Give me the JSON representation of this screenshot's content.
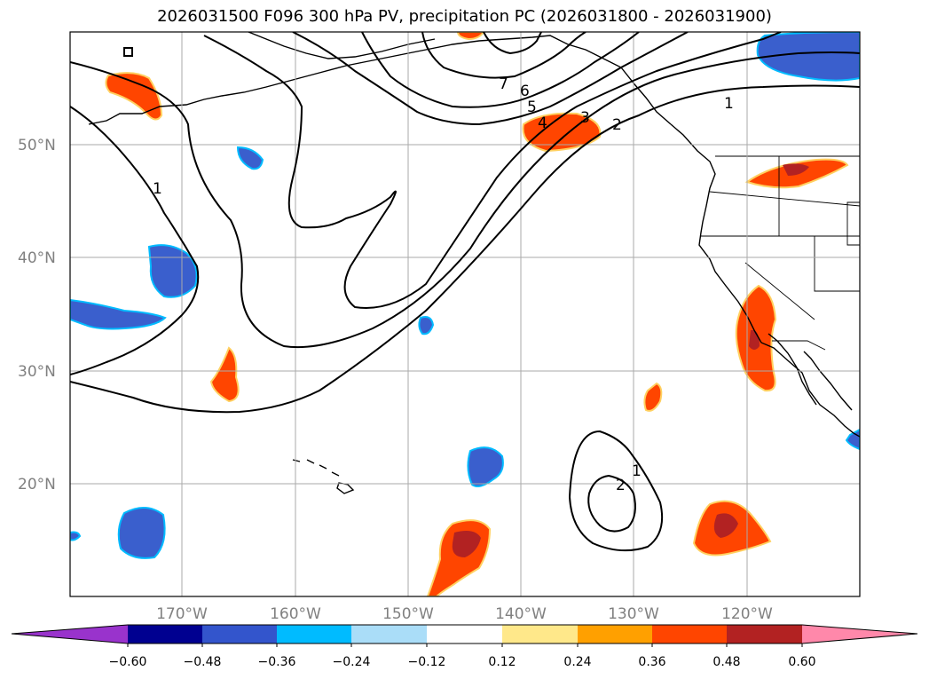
{
  "title": "2026031500 F096 300 hPa PV, precipitation PC (2026031800 - 2026031900)",
  "map": {
    "lon_range": [
      -180,
      -110
    ],
    "lat_range": [
      10,
      60
    ],
    "lat_ticks": [
      {
        "value": 20,
        "label": "20°N"
      },
      {
        "value": 30,
        "label": "30°N"
      },
      {
        "value": 40,
        "label": "40°N"
      },
      {
        "value": 50,
        "label": "50°N"
      }
    ],
    "lon_ticks": [
      {
        "value": -170,
        "label": "170°W"
      },
      {
        "value": -160,
        "label": "160°W"
      },
      {
        "value": -150,
        "label": "150°W"
      },
      {
        "value": -140,
        "label": "140°W"
      },
      {
        "value": -130,
        "label": "130°W"
      },
      {
        "value": -120,
        "label": "120°W"
      }
    ],
    "contour_labels": [
      "1",
      "1",
      "1",
      "2",
      "4",
      "5",
      "6",
      "7",
      "2",
      "3"
    ]
  },
  "colorbar": {
    "ticks": [
      "−0.60",
      "−0.48",
      "−0.36",
      "−0.24",
      "−0.12",
      "0.12",
      "0.24",
      "0.36",
      "0.48",
      "0.60"
    ],
    "colors": [
      "#9933cc",
      "#000090",
      "#3355cc",
      "#00bbff",
      "#aaddf8",
      "#ffffff",
      "#ffe88a",
      "#ffa000",
      "#ff4500",
      "#b22222",
      "#ff88aa"
    ]
  }
}
